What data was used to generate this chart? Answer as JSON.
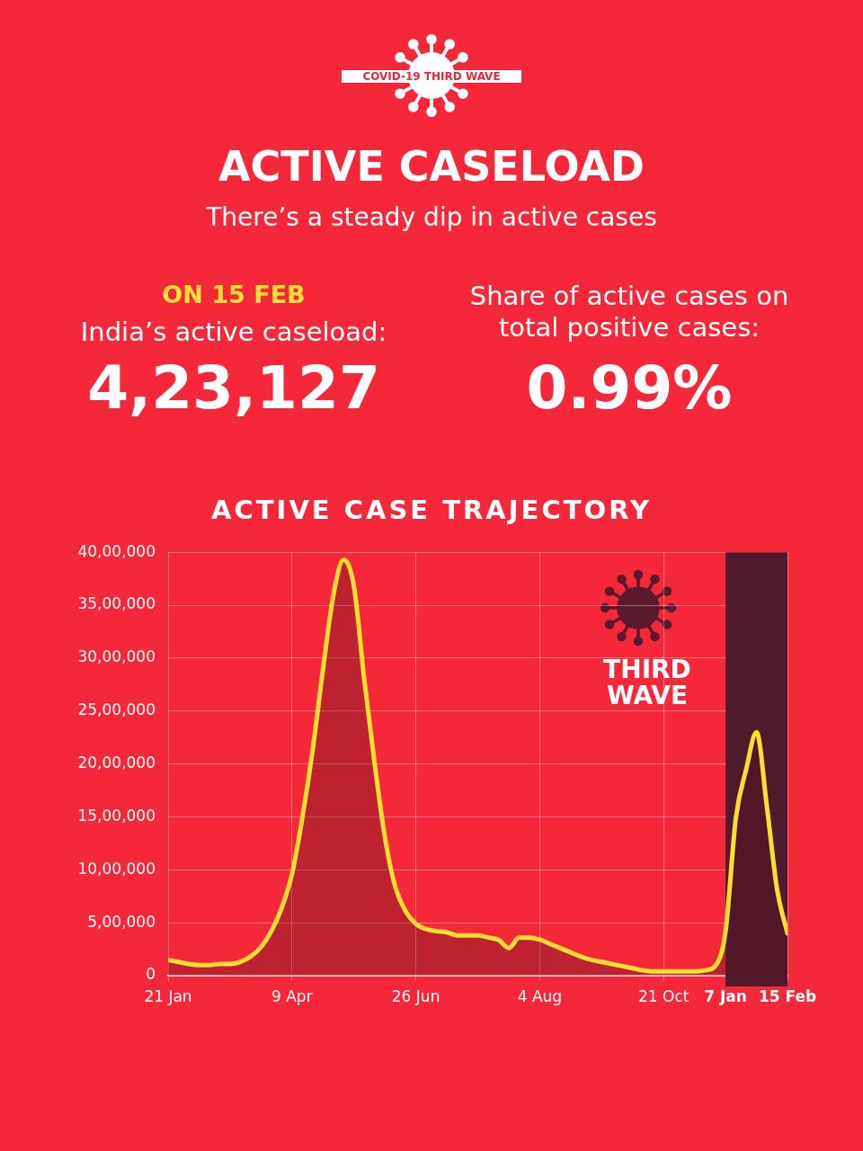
{
  "chart_data": {
    "type": "area",
    "title": "ACTIVE CASELOAD",
    "subtitle": "There’s a steady dip in active cases",
    "annotations": [
      "COVID-19 THIRD WAVE",
      "ON 15 FEB",
      "India’s active caseload:",
      "4,23,127",
      "Share of active cases on total positive cases:",
      "0.99%",
      "ACTIVE CASE TRAJECTORY",
      "THIRD WAVE"
    ],
    "categories": [
      "21 Jan",
      null,
      null,
      null,
      null,
      null,
      null,
      null,
      null,
      null,
      null,
      null,
      "9 Apr",
      null,
      null,
      null,
      null,
      null,
      null,
      null,
      null,
      null,
      null,
      null,
      "26 Jun",
      null,
      null,
      null,
      null,
      null,
      null,
      null,
      null,
      null,
      null,
      null,
      "4 Aug",
      null,
      null,
      null,
      null,
      null,
      null,
      null,
      null,
      null,
      null,
      null,
      "21 Oct",
      null,
      null,
      null,
      null,
      null,
      "7 Jan",
      null,
      null,
      null,
      null,
      null,
      "15 Feb"
    ],
    "series": [
      {
        "color": "#ffdd33",
        "values": [
          150000,
          130000,
          110000,
          100000,
          100000,
          110000,
          110000,
          130000,
          180000,
          270000,
          420000,
          640000,
          960000,
          1490000,
          2130000,
          2890000,
          3590000,
          3930000,
          3680000,
          2800000,
          2010000,
          1310000,
          840000,
          610000,
          490000,
          440000,
          420000,
          410000,
          380000,
          380000,
          380000,
          360000,
          340000,
          260000,
          360000,
          360000,
          340000,
          300000,
          260000,
          220000,
          180000,
          150000,
          130000,
          110000,
          90000,
          70000,
          50000,
          40000,
          40000,
          40000,
          40000,
          40000,
          50000,
          90000,
          420000,
          1490000,
          1950000,
          2300000,
          1600000,
          810000,
          400000
        ]
      }
    ],
    "ylim": [
      0,
      4000000
    ],
    "yticks": [
      {
        "value": 0,
        "label": "0"
      },
      {
        "value": 500000,
        "label": "5,00,000"
      },
      {
        "value": 1000000,
        "label": "10,00,000"
      },
      {
        "value": 1500000,
        "label": "15,00,000"
      },
      {
        "value": 2000000,
        "label": "20,00,000"
      },
      {
        "value": 2500000,
        "label": "25,00,000"
      },
      {
        "value": 3000000,
        "label": "30,00,000"
      },
      {
        "value": 3500000,
        "label": "35,00,000"
      },
      {
        "value": 4000000,
        "label": "40,00,000"
      }
    ],
    "bands": [
      {
        "axis": "x",
        "from": "7 Jan",
        "to": "15 Feb",
        "color": "#4e1a2c"
      }
    ],
    "grid": true
  }
}
